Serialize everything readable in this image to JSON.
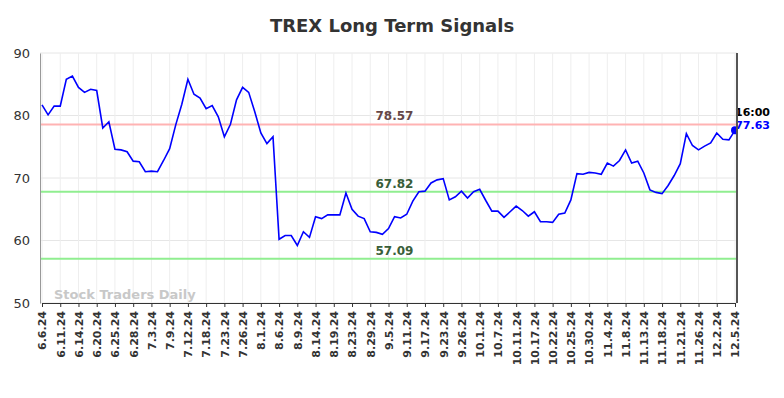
{
  "chart_data": {
    "type": "line",
    "title": "TREX Long Term Signals",
    "categories": [
      "6.6.24",
      null,
      null,
      "6.11.24",
      null,
      null,
      "6.14.24",
      null,
      null,
      "6.20.24",
      null,
      null,
      "6.25.24",
      null,
      null,
      "6.28.24",
      null,
      null,
      "7.3.24",
      null,
      null,
      "7.9.24",
      null,
      null,
      "7.12.24",
      null,
      null,
      "7.18.24",
      null,
      null,
      "7.23.24",
      null,
      null,
      "7.26.24",
      null,
      null,
      "8.1.24",
      null,
      null,
      "8.6.24",
      null,
      null,
      "8.9.24",
      null,
      null,
      "8.14.24",
      null,
      null,
      "8.19.24",
      null,
      null,
      "8.23.24",
      null,
      null,
      "8.29.24",
      null,
      null,
      "9.5.24",
      null,
      null,
      "9.11.24",
      null,
      null,
      "9.17.24",
      null,
      null,
      "9.23.24",
      null,
      null,
      "9.26.24",
      null,
      null,
      "10.1.24",
      null,
      null,
      "10.7.24",
      null,
      null,
      "10.11.24",
      null,
      null,
      "10.17.24",
      null,
      null,
      "10.22.24",
      null,
      null,
      "10.25.24",
      null,
      null,
      "10.30.24",
      null,
      null,
      "11.4.24",
      null,
      null,
      "11.8.24",
      null,
      null,
      "11.13.24",
      null,
      null,
      "11.18.24",
      null,
      null,
      "11.21.24",
      null,
      null,
      "11.26.24",
      null,
      null,
      "12.2.24",
      null,
      null,
      "12.5.24"
    ],
    "values": [
      81.7,
      80.1,
      81.5,
      81.5,
      85.8,
      86.3,
      84.5,
      83.7,
      84.2,
      84.0,
      78.0,
      79.0,
      74.6,
      74.5,
      74.2,
      72.7,
      72.6,
      71.0,
      71.1,
      71.0,
      72.8,
      74.7,
      78.5,
      81.8,
      85.8,
      83.4,
      82.8,
      81.1,
      81.6,
      79.8,
      76.6,
      78.6,
      82.5,
      84.5,
      83.7,
      80.6,
      77.2,
      75.5,
      76.6,
      60.2,
      60.8,
      60.8,
      59.2,
      61.4,
      60.5,
      63.8,
      63.5,
      64.1,
      64.1,
      64.1,
      67.6,
      65.0,
      63.9,
      63.5,
      61.4,
      61.3,
      61.0,
      61.9,
      63.8,
      63.6,
      64.2,
      66.3,
      67.8,
      67.9,
      69.2,
      69.7,
      69.9,
      66.5,
      67.0,
      67.9,
      66.8,
      67.8,
      68.2,
      66.4,
      64.7,
      64.7,
      63.7,
      64.6,
      65.5,
      64.8,
      63.9,
      64.6,
      63.0,
      63.0,
      62.9,
      64.2,
      64.4,
      66.5,
      70.7,
      70.6,
      70.9,
      70.8,
      70.6,
      72.4,
      71.9,
      72.8,
      74.5,
      72.4,
      72.7,
      70.8,
      68.1,
      67.7,
      67.5,
      68.8,
      70.4,
      72.3,
      77.1,
      75.2,
      74.5,
      75.1,
      75.6,
      77.2,
      76.2,
      76.1,
      77.63
    ],
    "color": "#0000ff",
    "ylim": [
      50,
      90
    ],
    "yticks": [
      50,
      60,
      70,
      80,
      90
    ],
    "grid": true,
    "reference_lines": [
      {
        "value": 78.57,
        "color": "#ffb3b3"
      },
      {
        "value": 67.82,
        "color": "#90ee90"
      },
      {
        "value": 57.09,
        "color": "#90ee90"
      }
    ],
    "time_label": "16:00",
    "watermark": "Stock Traders Daily"
  }
}
